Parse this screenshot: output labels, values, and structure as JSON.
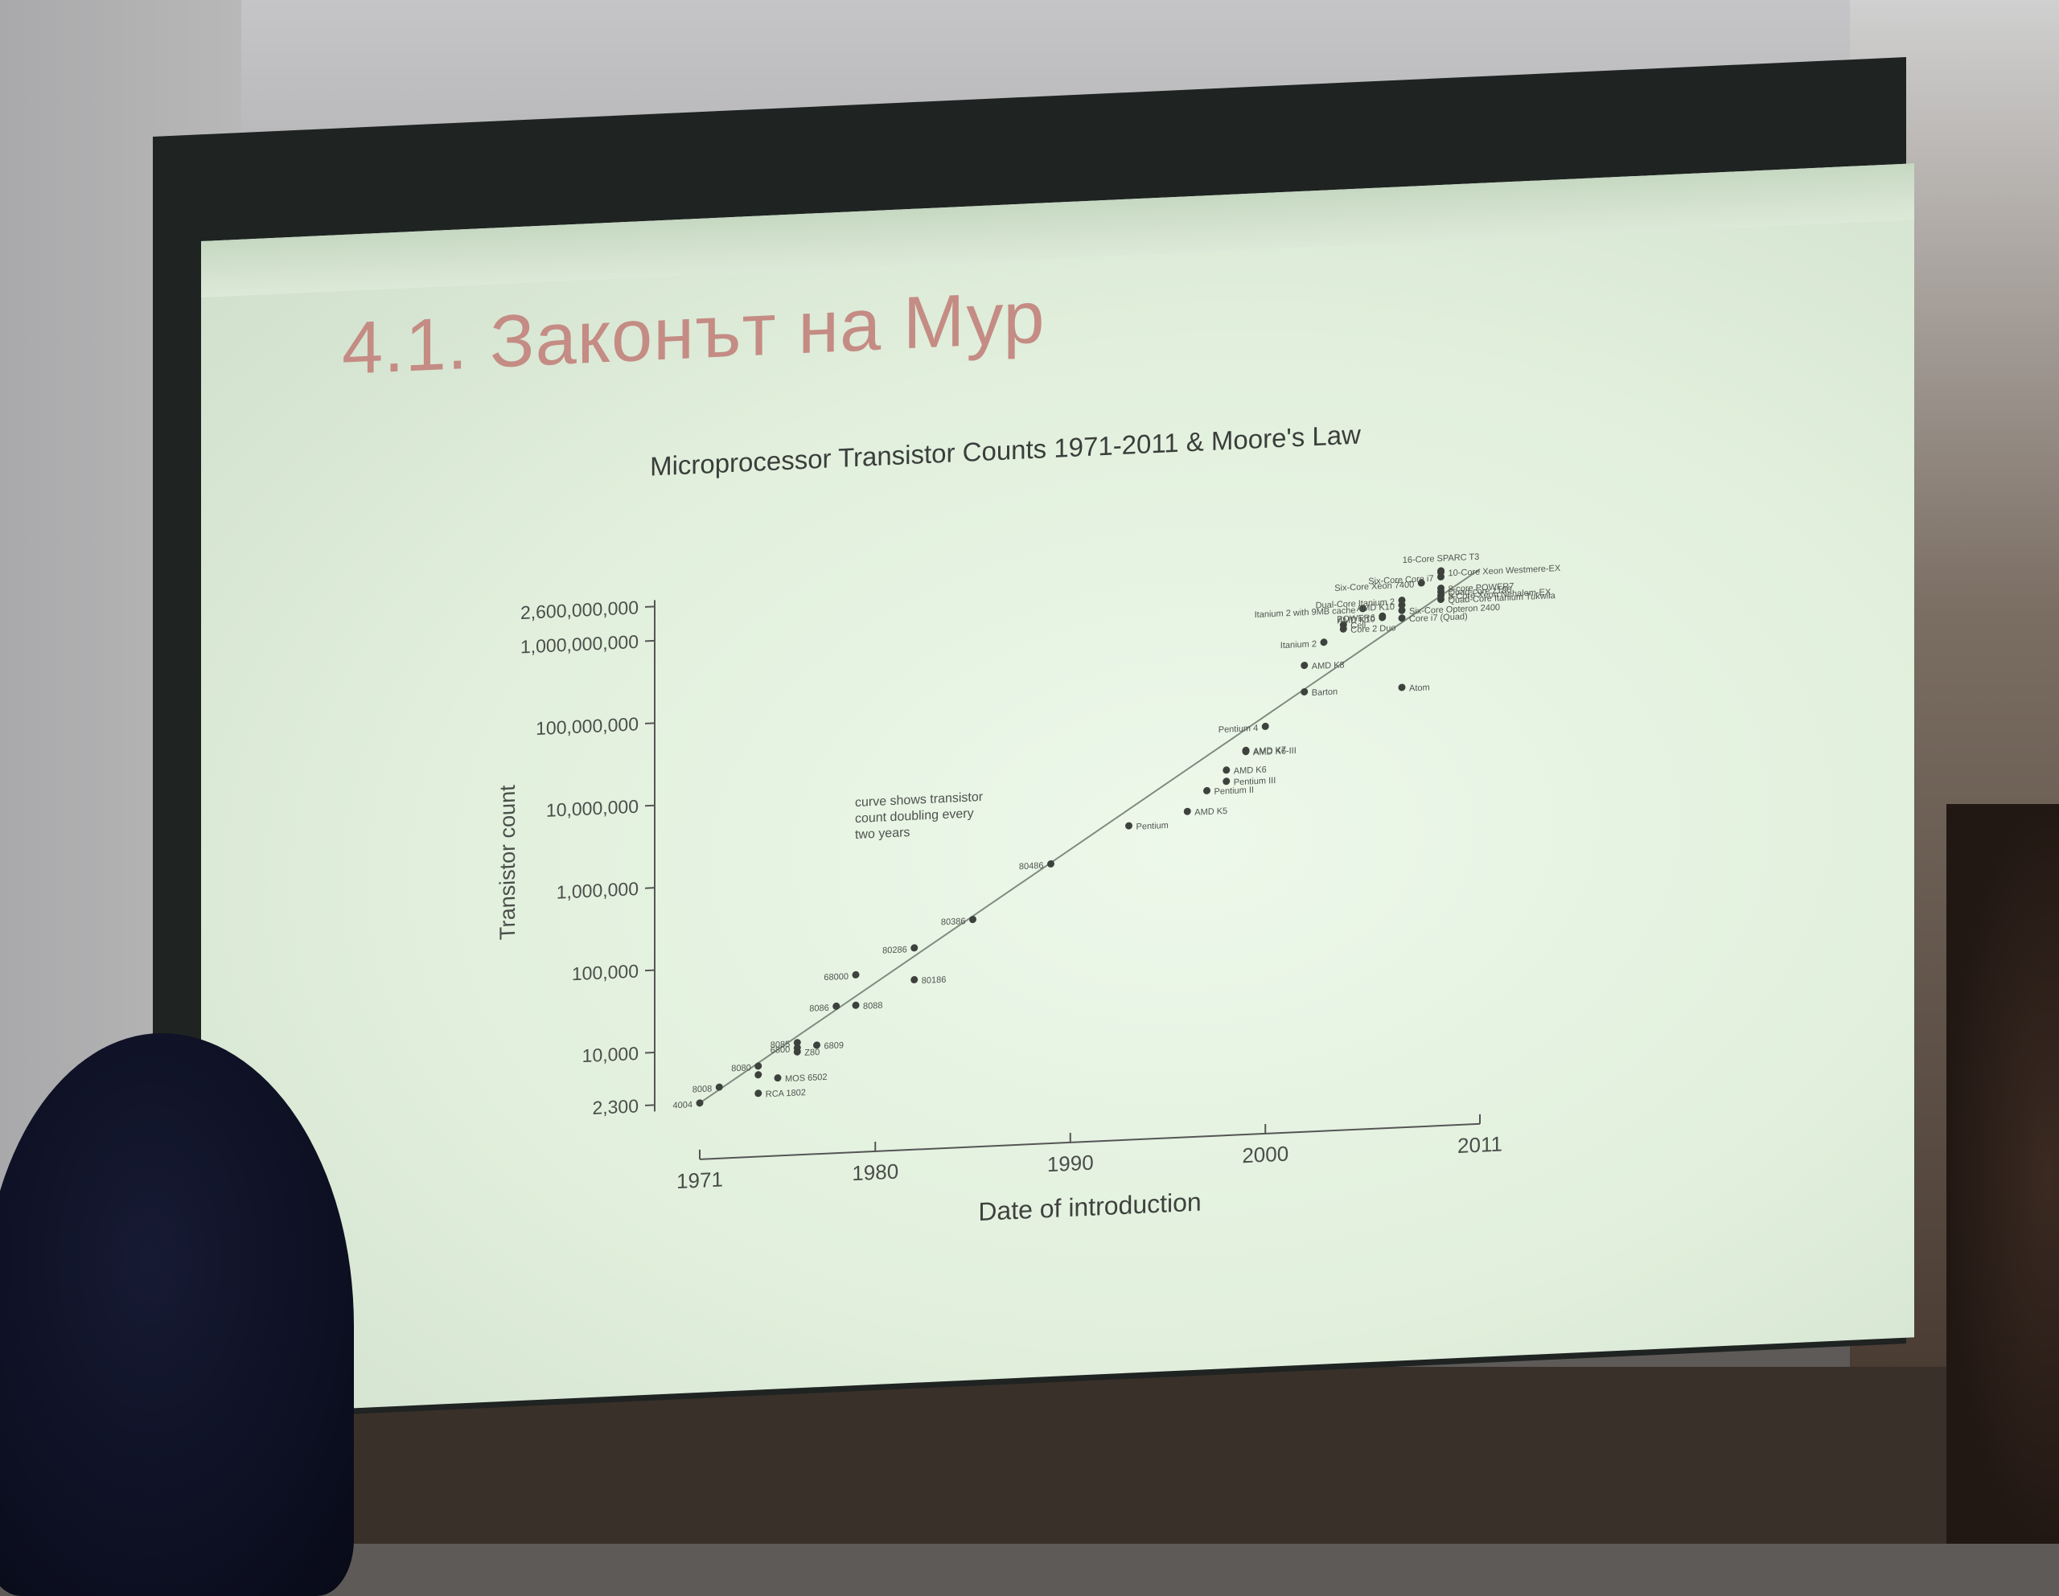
{
  "slide": {
    "title": "4.1. Законът на Мур"
  },
  "chart_data": {
    "type": "scatter",
    "title": "Microprocessor Transistor Counts 1971-2011 & Moore's Law",
    "xlabel": "Date of introduction",
    "ylabel": "Transistor count",
    "xlim": [
      1971,
      2011
    ],
    "ylim": [
      2300,
      2600000000
    ],
    "yscale": "log",
    "x_ticks": [
      "1971",
      "1980",
      "1990",
      "2000",
      "2011"
    ],
    "y_ticks": [
      {
        "label": "2,600,000,000",
        "value": 2600000000
      },
      {
        "label": "1,000,000,000",
        "value": 1000000000
      },
      {
        "label": "100,000,000",
        "value": 100000000
      },
      {
        "label": "10,000,000",
        "value": 10000000
      },
      {
        "label": "1,000,000",
        "value": 1000000
      },
      {
        "label": "100,000",
        "value": 100000
      },
      {
        "label": "10,000",
        "value": 10000
      },
      {
        "label": "2,300",
        "value": 2300
      }
    ],
    "trend_line": {
      "x": [
        1971,
        2011
      ],
      "y": [
        2300,
        2600000000
      ]
    },
    "annotation": [
      "curve shows transistor",
      "count doubling every",
      "two years"
    ],
    "points": [
      {
        "x": 1971,
        "y": 2300,
        "label": "4004",
        "side": "left"
      },
      {
        "x": 1974,
        "y": 2800,
        "label": "RCA 1802",
        "side": "right"
      },
      {
        "x": 1972,
        "y": 3500,
        "label": "8008",
        "side": "left"
      },
      {
        "x": 1975,
        "y": 4200,
        "label": "MOS 6502",
        "side": "right"
      },
      {
        "x": 1974,
        "y": 4700,
        "label": "",
        "side": "right"
      },
      {
        "x": 1974,
        "y": 6000,
        "label": "8080",
        "side": "left"
      },
      {
        "x": 1976,
        "y": 8500,
        "label": "Z80",
        "side": "right"
      },
      {
        "x": 1976,
        "y": 9500,
        "label": "6800",
        "side": "left"
      },
      {
        "x": 1977,
        "y": 10000,
        "label": "6809",
        "side": "right"
      },
      {
        "x": 1976,
        "y": 11000,
        "label": "8085",
        "side": "left"
      },
      {
        "x": 1978,
        "y": 29000,
        "label": "8086",
        "side": "left"
      },
      {
        "x": 1979,
        "y": 29000,
        "label": "8088",
        "side": "right"
      },
      {
        "x": 1979,
        "y": 68000,
        "label": "68000",
        "side": "left"
      },
      {
        "x": 1982,
        "y": 55000,
        "label": "80186",
        "side": "right"
      },
      {
        "x": 1982,
        "y": 134000,
        "label": "80286",
        "side": "left"
      },
      {
        "x": 1985,
        "y": 275000,
        "label": "80386",
        "side": "left"
      },
      {
        "x": 1989,
        "y": 1180000,
        "label": "80486",
        "side": "left"
      },
      {
        "x": 1993,
        "y": 3100000,
        "label": "Pentium",
        "side": "right"
      },
      {
        "x": 1996,
        "y": 4300000,
        "label": "AMD K5",
        "side": "right"
      },
      {
        "x": 1997,
        "y": 7500000,
        "label": "Pentium II",
        "side": "right"
      },
      {
        "x": 1998,
        "y": 9500000,
        "label": "Pentium III",
        "side": "right"
      },
      {
        "x": 1998,
        "y": 13000000,
        "label": "AMD K6",
        "side": "right"
      },
      {
        "x": 1999,
        "y": 21300000,
        "label": "AMD K6-III",
        "side": "right"
      },
      {
        "x": 1999,
        "y": 22000000,
        "label": "AMD K7",
        "side": "right"
      },
      {
        "x": 2000,
        "y": 42000000,
        "label": "Pentium 4",
        "side": "left"
      },
      {
        "x": 2002,
        "y": 105000000,
        "label": "Barton",
        "side": "right"
      },
      {
        "x": 2002,
        "y": 220000000,
        "label": "AMD K8",
        "side": "right"
      },
      {
        "x": 2007,
        "y": 105000000,
        "label": "Atom",
        "side": "right"
      },
      {
        "x": 2003,
        "y": 410000000,
        "label": "Itanium 2",
        "side": "left"
      },
      {
        "x": 2004,
        "y": 580000000,
        "label": "Core 2 Duo",
        "side": "right"
      },
      {
        "x": 2004,
        "y": 650000000,
        "label": "Cell",
        "side": "right"
      },
      {
        "x": 2005,
        "y": 1000000000,
        "label": "Itanium 2 with 9MB cache",
        "side": "left"
      },
      {
        "x": 2006,
        "y": 760000000,
        "label": "AMD K10",
        "side": "left"
      },
      {
        "x": 2007,
        "y": 730000000,
        "label": "Core i7 (Quad)",
        "side": "right"
      },
      {
        "x": 2006,
        "y": 790000000,
        "label": "POWER6",
        "side": "left"
      },
      {
        "x": 2007,
        "y": 904000000,
        "label": "Six-Core Opteron 2400",
        "side": "right"
      },
      {
        "x": 2007,
        "y": 1050000000,
        "label": "AMD K10",
        "side": "left"
      },
      {
        "x": 2007,
        "y": 1200000000,
        "label": "Dual-Core Itanium 2",
        "side": "left"
      },
      {
        "x": 2009,
        "y": 1170000000,
        "label": "Quad-Core Itanium Tukwila",
        "side": "right"
      },
      {
        "x": 2009,
        "y": 1300000000,
        "label": "8-Core Xeon Nehalem-EX",
        "side": "right"
      },
      {
        "x": 2009,
        "y": 1450000000,
        "label": "Quad-core z196",
        "side": "right"
      },
      {
        "x": 2009,
        "y": 1600000000,
        "label": "8-core POWER7",
        "side": "right"
      },
      {
        "x": 2008,
        "y": 1900000000,
        "label": "Six-Core Xeon 7400",
        "side": "left"
      },
      {
        "x": 2009,
        "y": 2200000000,
        "label": "Six-Core Core i7",
        "side": "left"
      },
      {
        "x": 2009,
        "y": 2500000000,
        "label": "10-Core Xeon Westmere-EX",
        "side": "right"
      },
      {
        "x": 2009,
        "y": 2600000000,
        "label": "16-Core SPARC T3",
        "side": "top"
      }
    ]
  }
}
